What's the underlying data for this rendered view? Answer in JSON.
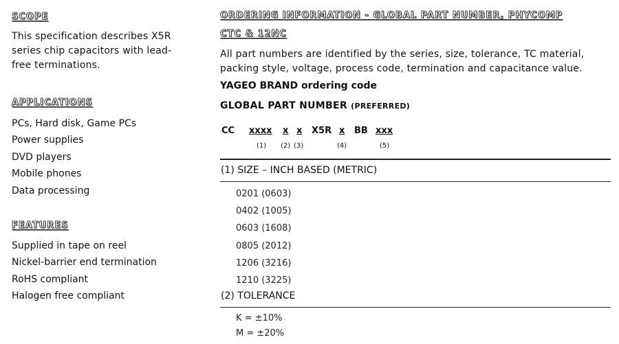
{
  "scope": {
    "heading": "Scope",
    "text_lines": [
      "This specification describes X5R",
      "series chip capacitors with lead-",
      "free terminations."
    ]
  },
  "applications": {
    "heading": "Applications",
    "items": [
      "PCs, Hard disk, Game PCs",
      "Power supplies",
      "DVD players",
      "Mobile phones",
      "Data processing"
    ]
  },
  "features": {
    "heading": "Features",
    "items": [
      "Supplied in tape on reel",
      "Nickel-barrier end termination",
      "RoHS compliant",
      "Halogen free compliant"
    ]
  },
  "ordering": {
    "heading_line1": "Ordering information - Global part number, Phycomp",
    "heading_line2": "CTC & 12NC",
    "intro_lines": [
      "All part numbers are identified by the series, size, tolerance, TC material,",
      "packing style, voltage, process code, termination and capacitance value."
    ],
    "brand": "YAGEO BRAND ordering code",
    "gpn": "GLOBAL PART NUMBER",
    "gpn_note": "(PREFERRED)",
    "code": [
      "CC",
      "xxxx",
      "x",
      "x",
      "X5R",
      "x",
      "BB",
      "xxx"
    ],
    "code_index": [
      "(1)",
      "(2)",
      "(3)",
      "(4)",
      "(5)"
    ],
    "size": {
      "heading": "(1) SIZE – INCH BASED (METRIC)",
      "items": [
        "0201 (0603)",
        "0402 (1005)",
        "0603 (1608)",
        "0805 (2012)",
        "1206 (3216)",
        "1210 (3225)"
      ]
    },
    "tolerance": {
      "heading": "(2) TOLERANCE",
      "items": [
        "K = ±10%",
        "M = ±20%"
      ]
    }
  }
}
